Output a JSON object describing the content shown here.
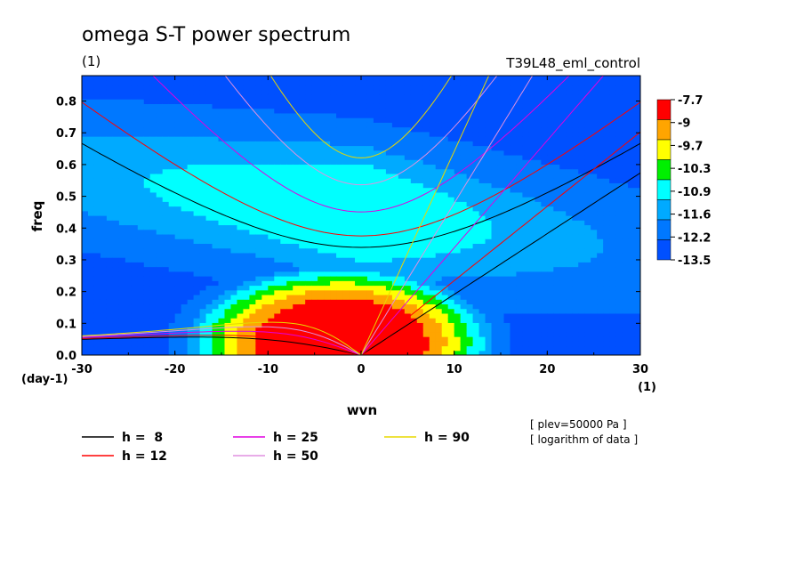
{
  "chart_data": {
    "type": "heatmap",
    "title": "omega S-T power spectrum",
    "subtitle_left": "(1)",
    "subtitle_right": "T39L48_eml_control",
    "xlabel": "wvn",
    "ylabel": "freq",
    "x_unit": "(1)",
    "y_unit": "(day-1)",
    "xlim": [
      -30,
      30
    ],
    "ylim": [
      0,
      0.88
    ],
    "x_ticks": [
      -30,
      -20,
      -10,
      0,
      10,
      20,
      30
    ],
    "x_tick_labels": [
      "-30",
      "-20",
      "-10",
      "0",
      "10",
      "20",
      "30"
    ],
    "y_ticks": [
      0.0,
      0.1,
      0.2,
      0.3,
      0.4,
      0.5,
      0.6,
      0.7,
      0.8
    ],
    "y_tick_labels": [
      "0.0",
      "0.1",
      "0.2",
      "0.3",
      "0.4",
      "0.5",
      "0.6",
      "0.7",
      "0.8"
    ],
    "contour_levels": [
      "-7.7",
      "-9",
      "-9.7",
      "-10.3",
      "-10.9",
      "-11.6",
      "-12.2",
      "-13.5"
    ],
    "contour_colors": [
      "#ff0000",
      "#ffa500",
      "#ffff00",
      "#00f000",
      "#00ffff",
      "#00aaff",
      "#0078ff",
      "#0050ff"
    ],
    "power_field": {
      "description_of_shape": "maximum near wvn -8..4, freq 0..0.1; decreasing outward",
      "peak_log_power": -7.4,
      "peak_x": -2,
      "peak_y": 0.04
    },
    "dispersion_curves": [
      {
        "label": "h =  8",
        "h": 8,
        "color": "#000000"
      },
      {
        "label": "h = 12",
        "h": 12,
        "color": "#ff0000"
      },
      {
        "label": "h = 25",
        "h": 25,
        "color": "#e000e0"
      },
      {
        "label": "h = 50",
        "h": 50,
        "color": "#e090e0"
      },
      {
        "label": "h = 90",
        "h": 90,
        "color": "#e8d800"
      }
    ],
    "notes": [
      "[ plev=50000 Pa ]",
      "[ logarithm of data ]"
    ]
  }
}
